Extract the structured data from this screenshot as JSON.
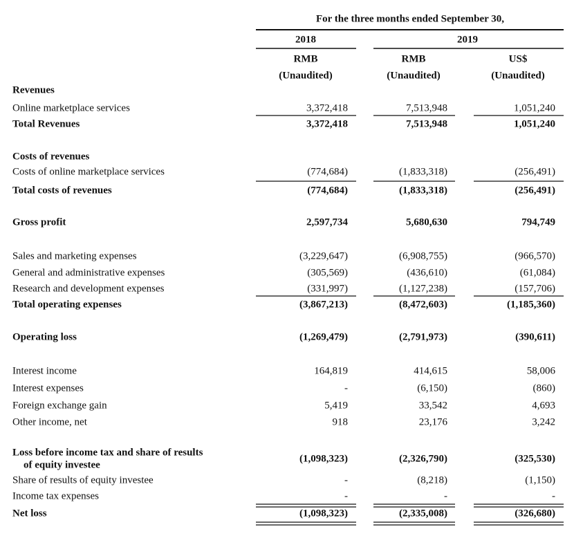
{
  "header": {
    "title": "For the three months ended September 30,",
    "years": [
      "2018",
      "2019"
    ],
    "currencies": [
      "RMB",
      "RMB",
      "US$"
    ],
    "audit_status": [
      "(Unaudited)",
      "(Unaudited)",
      "(Unaudited)"
    ]
  },
  "rows": [
    {
      "label": [
        "Revenues"
      ]
    },
    {
      "label": [
        "Online marketplace services"
      ],
      "values": [
        "3,372,418",
        "7,513,948",
        "1,051,240"
      ]
    },
    {
      "label": [
        "Total Revenues"
      ],
      "values": [
        "3,372,418",
        "7,513,948",
        "1,051,240"
      ]
    },
    {
      "label": [
        "Costs of revenues"
      ]
    },
    {
      "label": [
        "Costs of online marketplace services"
      ],
      "values": [
        "(774,684)",
        "(1,833,318)",
        "(256,491)"
      ]
    },
    {
      "label": [
        "Total costs of revenues"
      ],
      "values": [
        "(774,684)",
        "(1,833,318)",
        "(256,491)"
      ]
    },
    {
      "label": [
        "Gross profit"
      ],
      "values": [
        "2,597,734",
        "5,680,630",
        "794,749"
      ]
    },
    {
      "label": [
        "Sales and marketing expenses"
      ],
      "values": [
        "(3,229,647)",
        "(6,908,755)",
        "(966,570)"
      ]
    },
    {
      "label": [
        "General and administrative expenses"
      ],
      "values": [
        "(305,569)",
        "(436,610)",
        "(61,084)"
      ]
    },
    {
      "label": [
        "Research and development expenses"
      ],
      "values": [
        "(331,997)",
        "(1,127,238)",
        "(157,706)"
      ]
    },
    {
      "label": [
        "Total operating expenses"
      ],
      "values": [
        "(3,867,213)",
        "(8,472,603)",
        "(1,185,360)"
      ]
    },
    {
      "label": [
        "Operating loss"
      ],
      "values": [
        "(1,269,479)",
        "(2,791,973)",
        "(390,611)"
      ]
    },
    {
      "label": [
        "Interest income"
      ],
      "values": [
        "164,819",
        "414,615",
        "58,006"
      ]
    },
    {
      "label": [
        "Interest expenses"
      ],
      "values": [
        "-",
        "(6,150)",
        "(860)"
      ]
    },
    {
      "label": [
        "Foreign exchange gain"
      ],
      "values": [
        "5,419",
        "33,542",
        "4,693"
      ]
    },
    {
      "label": [
        "Other income, net"
      ],
      "values": [
        "918",
        "23,176",
        "3,242"
      ]
    },
    {
      "label": [
        "Loss before income tax and share of results",
        "of equity investee"
      ],
      "values": [
        "(1,098,323)",
        "(2,326,790)",
        "(325,530)"
      ]
    },
    {
      "label": [
        "Share of results of equity investee"
      ],
      "values": [
        "-",
        "(8,218)",
        "(1,150)"
      ]
    },
    {
      "label": [
        "Income tax expenses"
      ],
      "values": [
        "-",
        "-",
        "-"
      ]
    },
    {
      "label": [
        "Net loss"
      ],
      "values": [
        "(1,098,323)",
        "(2,335,008)",
        "(326,680)"
      ]
    }
  ]
}
